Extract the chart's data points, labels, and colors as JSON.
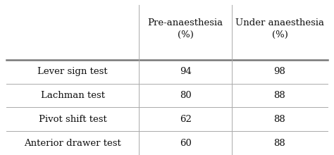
{
  "col_headers": [
    "Pre-anaesthesia\n(%)",
    "Under anaesthesia\n(%)"
  ],
  "row_labels": [
    "Lever sign test",
    "Lachman test",
    "Pivot shift test",
    "Anterior drawer test"
  ],
  "values": [
    [
      "94",
      "98"
    ],
    [
      "80",
      "88"
    ],
    [
      "62",
      "88"
    ],
    [
      "60",
      "88"
    ]
  ],
  "bg_color": "#ffffff",
  "text_color": "#111111",
  "header_line_color": "#777777",
  "cell_line_color": "#aaaaaa",
  "font_family": "DejaVu Serif",
  "font_size": 9.5,
  "fig_width": 4.74,
  "fig_height": 2.2,
  "dpi": 100
}
